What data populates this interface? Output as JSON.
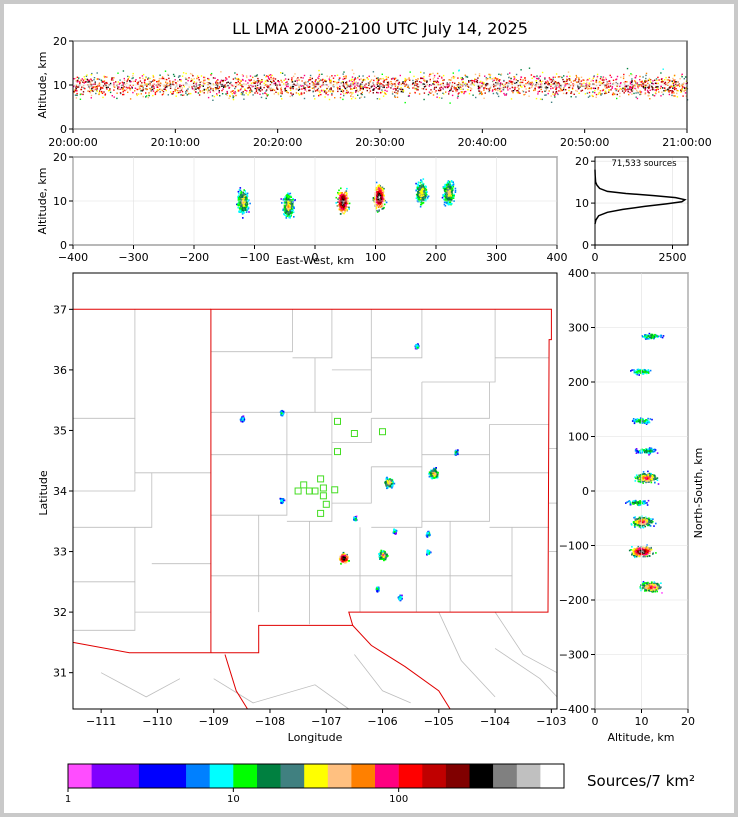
{
  "title": "LL LMA 2000-2100 UTC July 14, 2025",
  "colorbar": {
    "units_label": "Sources/7 km²",
    "ticks": [
      "1",
      "10",
      "100"
    ],
    "colors": [
      "#ff4dff",
      "#8000ff",
      "#0000ff",
      "#0080ff",
      "#00ffff",
      "#00ff00",
      "#008040",
      "#408080",
      "#ffff00",
      "#ffc080",
      "#ff8000",
      "#ff0080",
      "#ff0000",
      "#c00000",
      "#800000",
      "#000000",
      "#808080",
      "#c0c0c0",
      "#ffffff"
    ]
  },
  "chart_data": [
    {
      "type": "heatmap",
      "name": "altitude-time",
      "xlabel": "",
      "ylabel": "Altitude, km",
      "xticks": [
        "20:00:00",
        "20:10:00",
        "20:20:00",
        "20:30:00",
        "20:40:00",
        "20:50:00",
        "21:00:00"
      ],
      "xlim": [
        "20:00:00",
        "21:00:00"
      ],
      "ylim": [
        0,
        20
      ],
      "yticks": [
        0,
        10,
        20
      ],
      "grid": true
    },
    {
      "type": "heatmap",
      "name": "altitude-east-west",
      "xlabel": "East-West, km",
      "ylabel": "Altitude, km",
      "xlim": [
        -400,
        400
      ],
      "xticks": [
        -400,
        -300,
        -200,
        -100,
        0,
        100,
        200,
        300,
        400
      ],
      "ylim": [
        0,
        20
      ],
      "yticks": [
        0,
        10,
        20
      ],
      "grid": true,
      "clusters": [
        {
          "x": -120,
          "z": 10
        },
        {
          "x": -45,
          "z": 9
        },
        {
          "x": 45,
          "z": 10
        },
        {
          "x": 105,
          "z": 11
        },
        {
          "x": 175,
          "z": 12
        },
        {
          "x": 220,
          "z": 12
        }
      ]
    },
    {
      "type": "line",
      "name": "altitude-histogram",
      "annotation": "71,533 sources",
      "xlim": [
        0,
        3000
      ],
      "xticks": [
        0,
        2500
      ],
      "ylim": [
        0,
        21
      ],
      "yticks": [
        0,
        10,
        20
      ],
      "x": [
        0,
        30,
        120,
        400,
        900,
        1600,
        2300,
        2800,
        2900,
        2600,
        1900,
        1000,
        400,
        150,
        60,
        20,
        5,
        0
      ],
      "y": [
        5.0,
        6.0,
        7.0,
        7.8,
        8.5,
        9.2,
        9.8,
        10.3,
        10.8,
        11.3,
        11.8,
        12.3,
        12.8,
        13.5,
        14.3,
        15.0,
        16.5,
        18.0
      ],
      "grid": true
    },
    {
      "type": "heatmap",
      "name": "plan-view-map",
      "xlabel": "Longitude",
      "ylabel": "Latitude",
      "xlim": [
        -111.5,
        -102.9
      ],
      "ylim": [
        30.4,
        37.6
      ],
      "xticks": [
        -111,
        -110,
        -109,
        -108,
        -107,
        -106,
        -105,
        -104,
        -103
      ],
      "yticks": [
        31,
        32,
        33,
        34,
        35,
        36,
        37
      ],
      "clusters": [
        {
          "lon": -105.9,
          "lat": 34.15
        },
        {
          "lon": -105.1,
          "lat": 34.3
        },
        {
          "lon": -106.7,
          "lat": 32.9
        },
        {
          "lon": -106.0,
          "lat": 32.95
        },
        {
          "lon": -106.5,
          "lat": 33.55
        },
        {
          "lon": -105.8,
          "lat": 33.35
        },
        {
          "lon": -105.2,
          "lat": 33.3
        },
        {
          "lon": -105.2,
          "lat": 33.0
        },
        {
          "lon": -106.1,
          "lat": 32.4
        },
        {
          "lon": -105.7,
          "lat": 32.25
        },
        {
          "lon": -108.5,
          "lat": 35.2
        },
        {
          "lon": -107.8,
          "lat": 35.3
        },
        {
          "lon": -107.8,
          "lat": 33.85
        },
        {
          "lon": -105.4,
          "lat": 36.4
        },
        {
          "lon": -104.7,
          "lat": 34.65
        }
      ],
      "stations": [
        {
          "lon": -106.8,
          "lat": 35.15
        },
        {
          "lon": -106.5,
          "lat": 34.95
        },
        {
          "lon": -106.0,
          "lat": 34.98
        },
        {
          "lon": -106.8,
          "lat": 34.65
        },
        {
          "lon": -107.4,
          "lat": 34.1
        },
        {
          "lon": -107.1,
          "lat": 34.2
        },
        {
          "lon": -107.5,
          "lat": 34.0
        },
        {
          "lon": -107.3,
          "lat": 34.0
        },
        {
          "lon": -107.2,
          "lat": 34.0
        },
        {
          "lon": -107.05,
          "lat": 34.05
        },
        {
          "lon": -106.85,
          "lat": 34.02
        },
        {
          "lon": -107.05,
          "lat": 33.92
        },
        {
          "lon": -107.0,
          "lat": 33.78
        },
        {
          "lon": -107.1,
          "lat": 33.63
        }
      ]
    },
    {
      "type": "heatmap",
      "name": "north-south-altitude",
      "xlabel": "Altitude, km",
      "ylabel": "North-South, km",
      "xlim": [
        0,
        20
      ],
      "xticks": [
        0,
        10,
        20
      ],
      "ylim": [
        -400,
        400
      ],
      "yticks": [
        -400,
        -300,
        -200,
        -100,
        0,
        100,
        200,
        300,
        400
      ],
      "grid": true,
      "clusters": [
        {
          "y": 285,
          "alt": 12
        },
        {
          "y": 220,
          "alt": 10
        },
        {
          "y": 130,
          "alt": 10
        },
        {
          "y": 75,
          "alt": 11
        },
        {
          "y": 25,
          "alt": 11
        },
        {
          "y": -20,
          "alt": 9
        },
        {
          "y": -55,
          "alt": 10
        },
        {
          "y": -110,
          "alt": 10
        },
        {
          "y": -175,
          "alt": 12
        }
      ]
    }
  ]
}
